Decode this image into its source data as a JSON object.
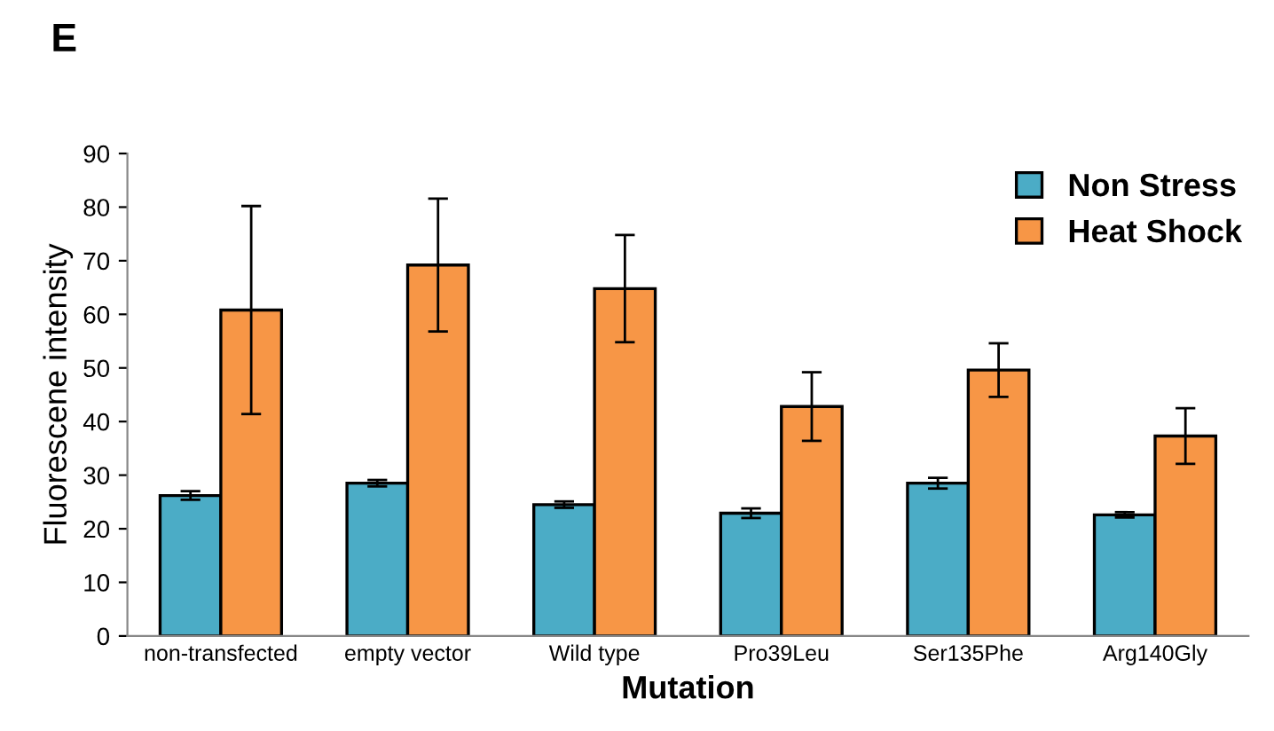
{
  "chart_data": {
    "type": "bar",
    "title": "E",
    "xlabel": "Mutation",
    "ylabel": "Fluorescene intensity",
    "categories": [
      "non-transfected",
      "empty vector",
      "Wild type",
      "Pro39Leu",
      "Ser135Phe",
      "Arg140Gly"
    ],
    "series": [
      {
        "name": "Non Stress",
        "color": "#4bacc6",
        "values": [
          26.2,
          28.5,
          24.5,
          22.9,
          28.5,
          22.6
        ],
        "errors": [
          0.8,
          0.6,
          0.6,
          0.9,
          1,
          0.5
        ]
      },
      {
        "name": "Heat Shock",
        "color": "#f79646",
        "values": [
          60.8,
          69.2,
          64.8,
          42.8,
          49.6,
          37.3
        ],
        "errors": [
          19.4,
          12.4,
          10,
          6.4,
          5,
          5.2
        ]
      }
    ],
    "ylim": [
      0,
      90
    ],
    "yticks": [
      0,
      10,
      20,
      30,
      40,
      50,
      60,
      70,
      80,
      90
    ],
    "grid": false,
    "legend": "top right"
  }
}
